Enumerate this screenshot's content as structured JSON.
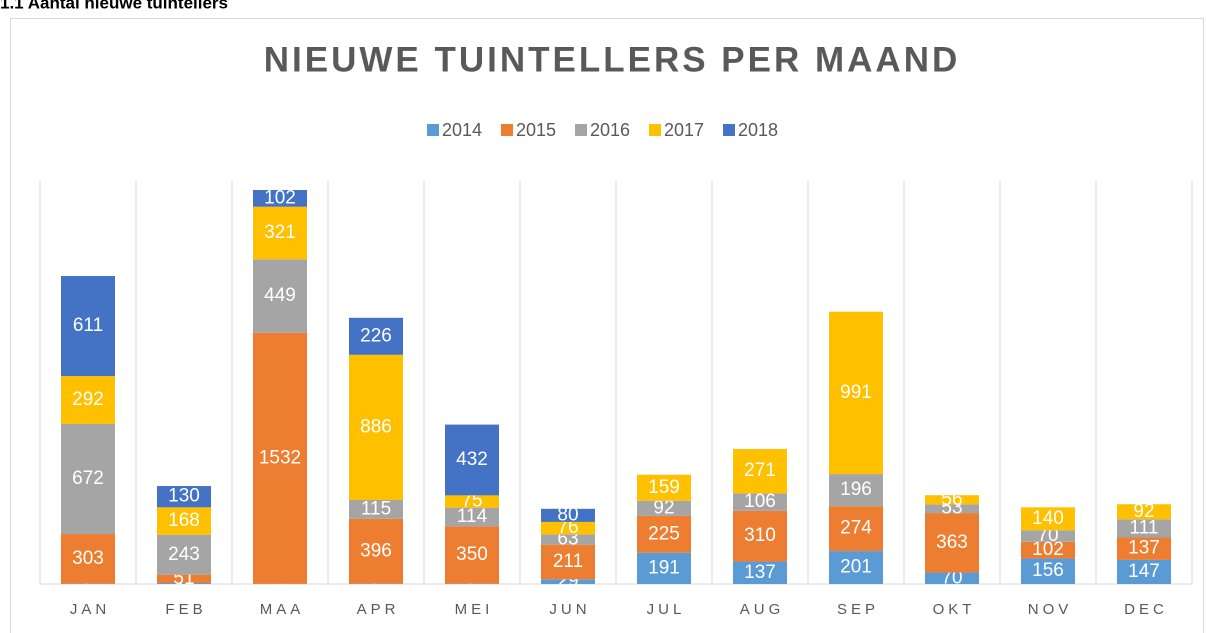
{
  "heading": "1.1 Aantal nieuwe tuintellers",
  "chart_data": {
    "type": "bar",
    "stacked": true,
    "title": "NIEUWE TUINTELLERS PER MAAND",
    "categories": [
      "JAN",
      "FEB",
      "MAA",
      "APR",
      "MEI",
      "JUN",
      "JUL",
      "AUG",
      "SEP",
      "OKT",
      "NOV",
      "DEC"
    ],
    "series": [
      {
        "name": "2014",
        "color": "#5b9bd5",
        "values": [
          2,
          6,
          1,
          2,
          2,
          29,
          191,
          137,
          201,
          70,
          156,
          147
        ]
      },
      {
        "name": "2015",
        "color": "#ed7d31",
        "values": [
          303,
          51,
          1532,
          396,
          350,
          211,
          225,
          310,
          274,
          363,
          102,
          137
        ]
      },
      {
        "name": "2016",
        "color": "#a5a5a5",
        "values": [
          672,
          243,
          449,
          115,
          114,
          63,
          92,
          106,
          196,
          53,
          70,
          111
        ]
      },
      {
        "name": "2017",
        "color": "#ffc000",
        "values": [
          292,
          168,
          321,
          886,
          75,
          76,
          159,
          271,
          991,
          56,
          140,
          92
        ]
      },
      {
        "name": "2018",
        "color": "#4472c4",
        "values": [
          611,
          130,
          102,
          226,
          432,
          80,
          null,
          null,
          null,
          null,
          null,
          null
        ]
      }
    ],
    "legend": "top",
    "grid": "vertical"
  }
}
